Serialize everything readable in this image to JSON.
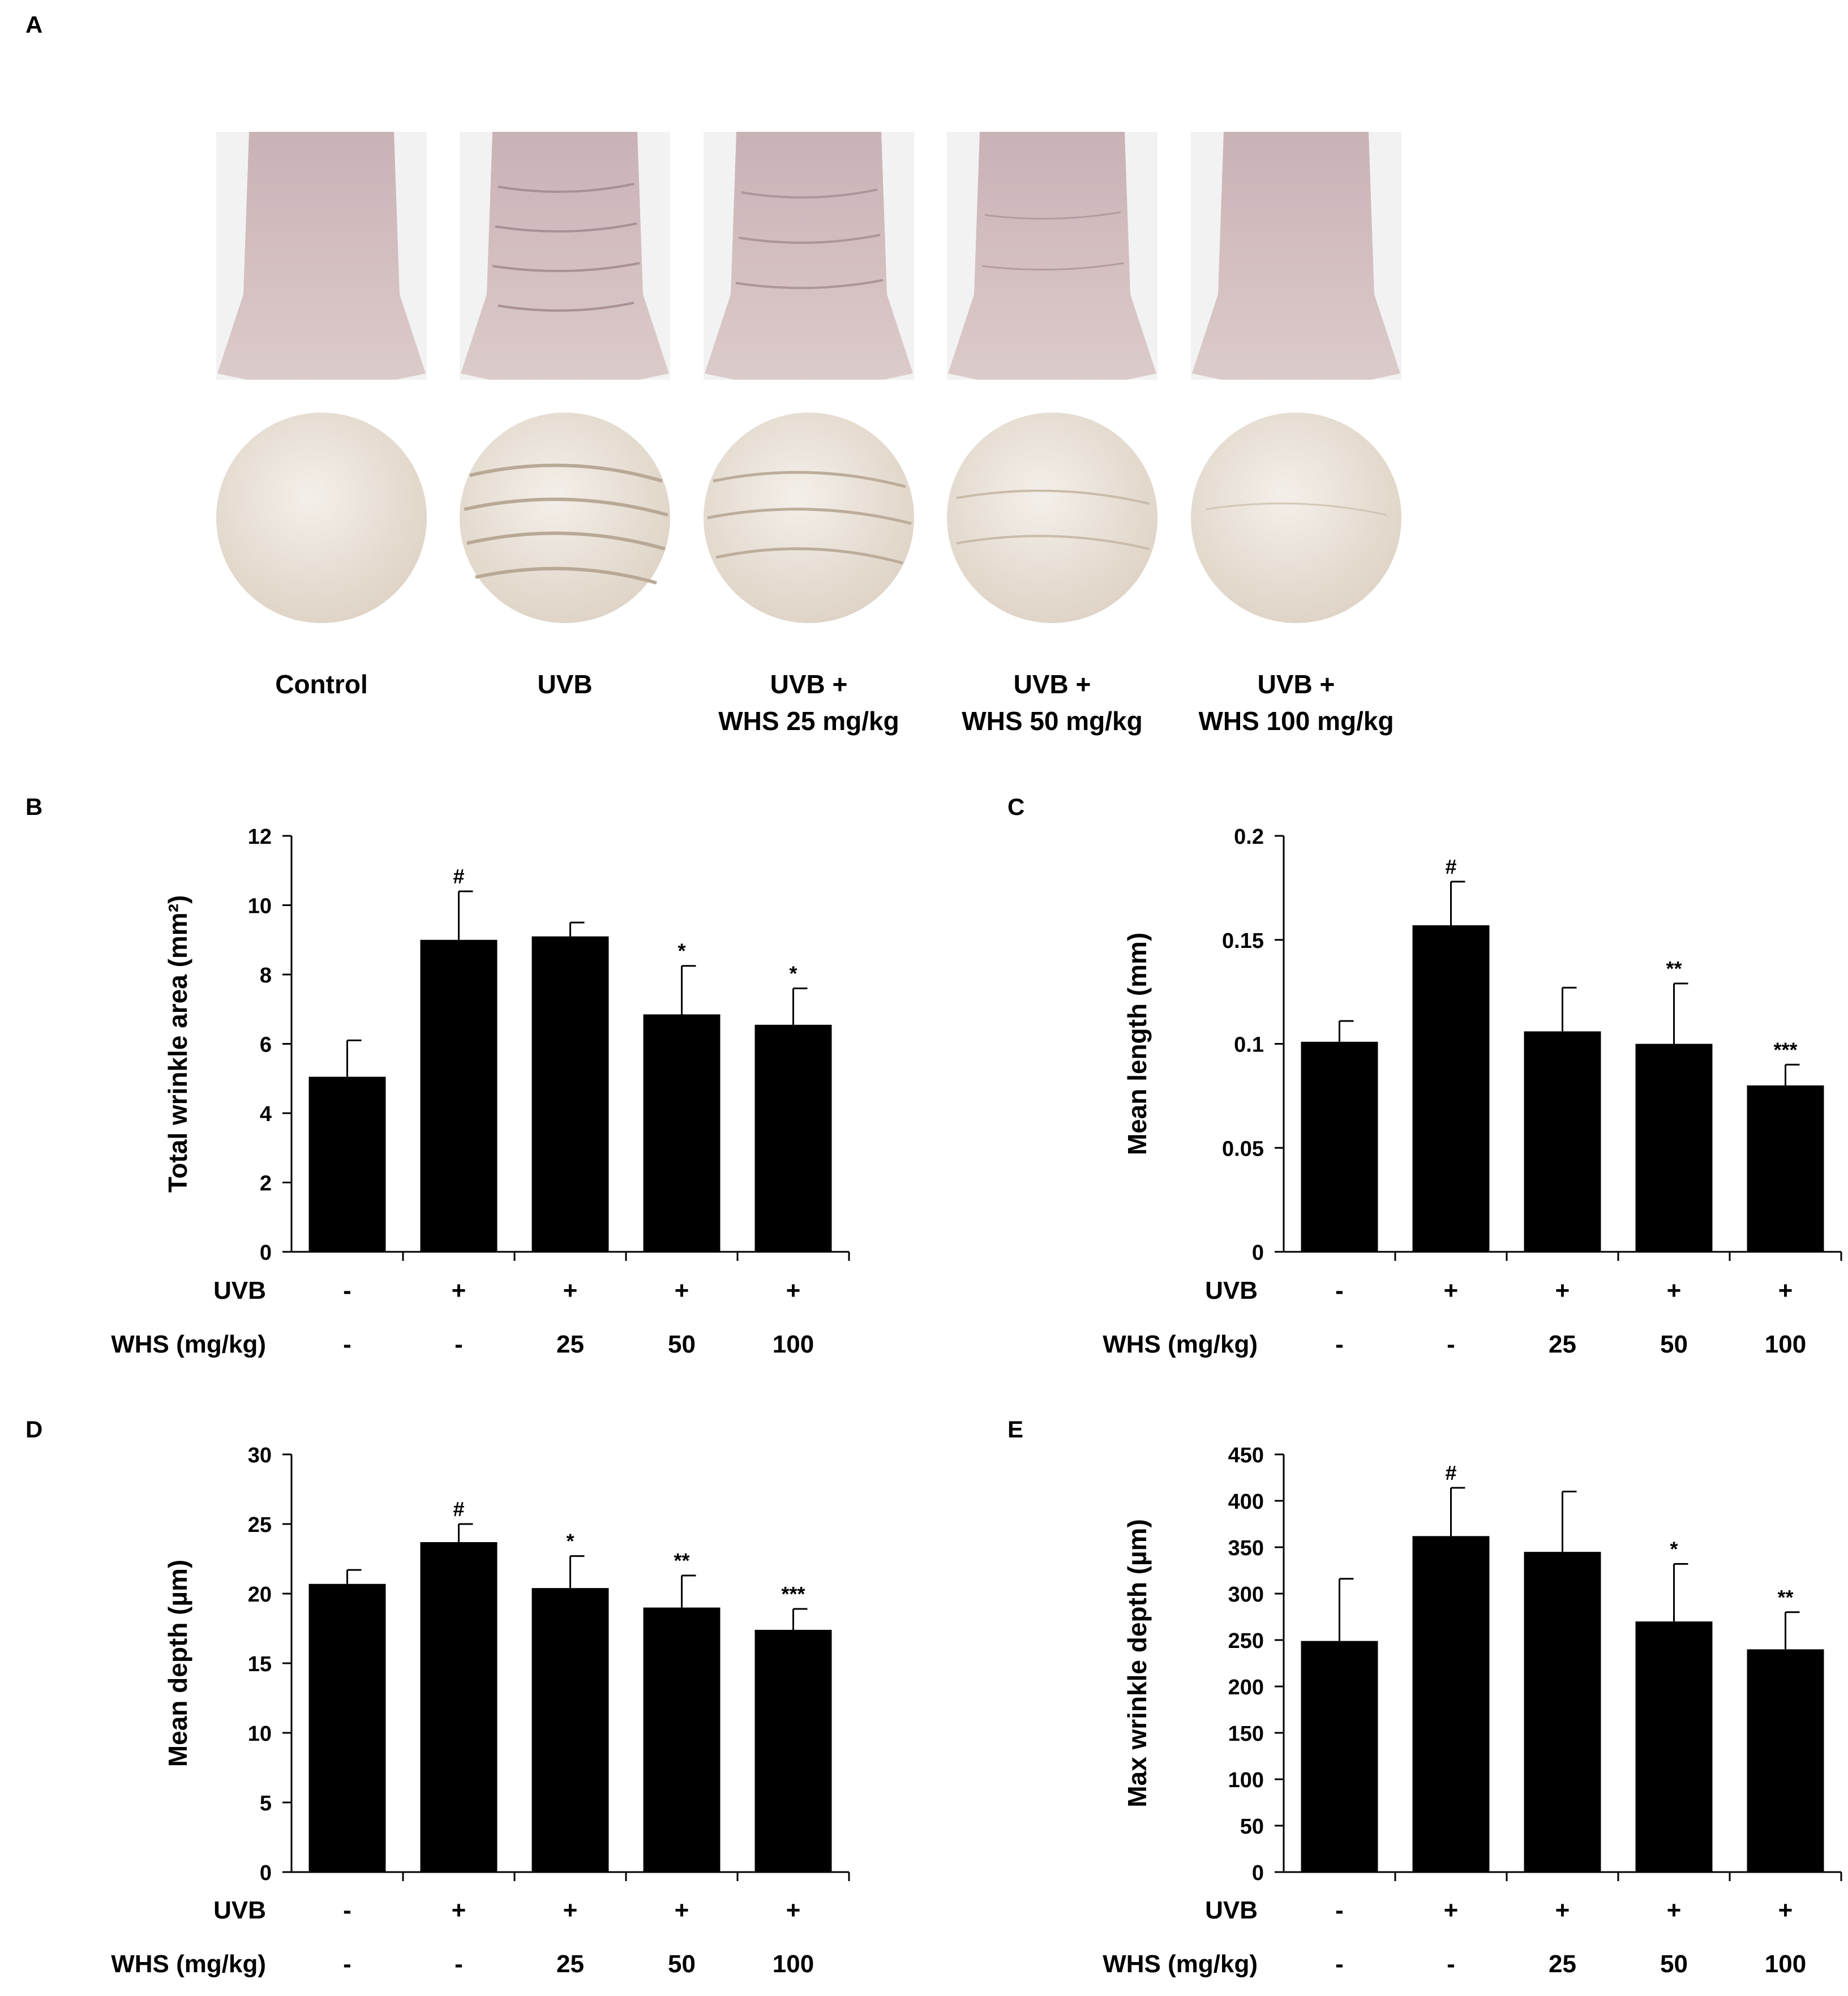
{
  "panel_a": {
    "label": "A",
    "groups": [
      {
        "line1": "Control",
        "line2": ""
      },
      {
        "line1": "UVB",
        "line2": ""
      },
      {
        "line1": "UVB +",
        "line2": "WHS 25 mg/kg"
      },
      {
        "line1": "UVB +",
        "line2": "WHS 50 mg/kg"
      },
      {
        "line1": "UVB +",
        "line2": "WHS 100 mg/kg"
      }
    ]
  },
  "chart_data": [
    {
      "panel": "B",
      "type": "bar",
      "ylabel": "Total wrinkle area (mm²)",
      "ylim": [
        0,
        12
      ],
      "yticks": [
        0,
        2,
        4,
        6,
        8,
        10,
        12
      ],
      "ytick_labels": [
        "0",
        "2",
        "4",
        "6",
        "8",
        "10",
        "12"
      ],
      "values": [
        5.05,
        9.0,
        9.1,
        6.85,
        6.55
      ],
      "errors": [
        1.05,
        1.4,
        0.4,
        1.4,
        1.05
      ],
      "annotations": [
        "",
        "#",
        "",
        "*",
        "*"
      ],
      "row1_label": "UVB",
      "row1": [
        "-",
        "+",
        "+",
        "+",
        "+"
      ],
      "row2_label": "WHS (mg/kg)",
      "row2": [
        "-",
        "-",
        "25",
        "50",
        "100"
      ]
    },
    {
      "panel": "C",
      "type": "bar",
      "ylabel": "Mean length (mm)",
      "ylim": [
        0,
        0.2
      ],
      "yticks": [
        0,
        0.05,
        0.1,
        0.15,
        0.2
      ],
      "ytick_labels": [
        "0",
        "0.05",
        "0.1",
        "0.15",
        "0.2"
      ],
      "values": [
        0.101,
        0.157,
        0.106,
        0.1,
        0.08
      ],
      "errors": [
        0.01,
        0.021,
        0.021,
        0.029,
        0.01
      ],
      "annotations": [
        "",
        "#",
        "",
        "**",
        "***"
      ],
      "row1_label": "UVB",
      "row1": [
        "-",
        "+",
        "+",
        "+",
        "+"
      ],
      "row2_label": "WHS (mg/kg)",
      "row2": [
        "-",
        "-",
        "25",
        "50",
        "100"
      ]
    },
    {
      "panel": "D",
      "type": "bar",
      "ylabel": "Mean depth (µm)",
      "ylim": [
        0,
        30
      ],
      "yticks": [
        0,
        5,
        10,
        15,
        20,
        25,
        30
      ],
      "ytick_labels": [
        "0",
        "5",
        "10",
        "15",
        "20",
        "25",
        "30"
      ],
      "values": [
        20.7,
        23.7,
        20.4,
        19.0,
        17.4
      ],
      "errors": [
        1.0,
        1.3,
        2.3,
        2.3,
        1.5
      ],
      "annotations": [
        "",
        "#",
        "*",
        "**",
        "***"
      ],
      "row1_label": "UVB",
      "row1": [
        "-",
        "+",
        "+",
        "+",
        "+"
      ],
      "row2_label": "WHS (mg/kg)",
      "row2": [
        "-",
        "-",
        "25",
        "50",
        "100"
      ]
    },
    {
      "panel": "E",
      "type": "bar",
      "ylabel": "Max wrinkle depth (µm)",
      "ylim": [
        0,
        450
      ],
      "yticks": [
        0,
        50,
        100,
        150,
        200,
        250,
        300,
        350,
        400,
        450
      ],
      "ytick_labels": [
        "0",
        "50",
        "100",
        "150",
        "200",
        "250",
        "300",
        "350",
        "400",
        "450"
      ],
      "values": [
        249,
        362,
        345,
        270,
        240
      ],
      "errors": [
        67,
        52,
        65,
        62,
        40
      ],
      "annotations": [
        "",
        "#",
        "",
        "*",
        "**"
      ],
      "row1_label": "UVB",
      "row1": [
        "-",
        "+",
        "+",
        "+",
        "+"
      ],
      "row2_label": "WHS (mg/kg)",
      "row2": [
        "-",
        "-",
        "25",
        "50",
        "100"
      ]
    }
  ]
}
